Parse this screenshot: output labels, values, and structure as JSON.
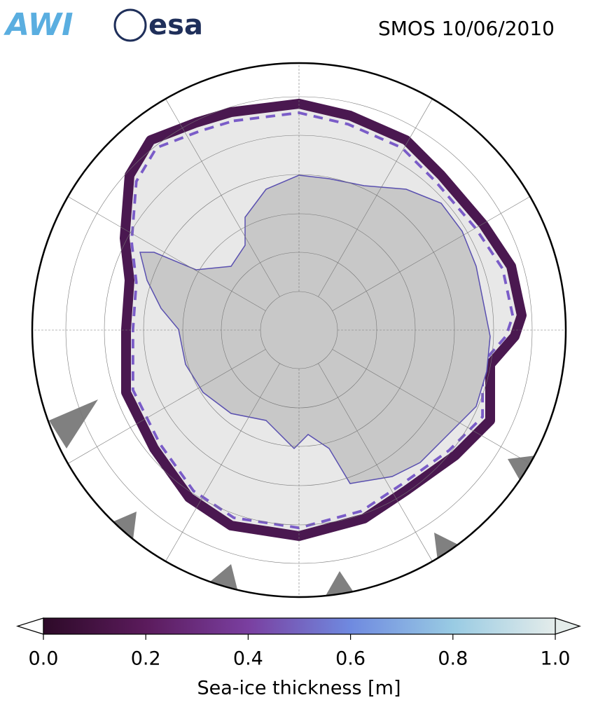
{
  "header": {
    "logos": [
      "AWI",
      "esa"
    ],
    "title": "SMOS 10/06/2010"
  },
  "colorbar": {
    "label": "Sea-ice thickness [m]",
    "lim": [
      0,
      1
    ],
    "ticks": [
      {
        "value": 0,
        "label": "0.0"
      },
      {
        "value": 0.2,
        "label": "0.2"
      },
      {
        "value": 0.4,
        "label": "0.4"
      },
      {
        "value": 0.6,
        "label": "0.6"
      },
      {
        "value": 0.8,
        "label": "0.8"
      },
      {
        "value": 1,
        "label": "1.0"
      }
    ],
    "colors": [
      "#2d0a28",
      "#5b1b5c",
      "#7a3fa0",
      "#6f8ae0",
      "#99cbe3",
      "#e4ecea"
    ]
  }
}
